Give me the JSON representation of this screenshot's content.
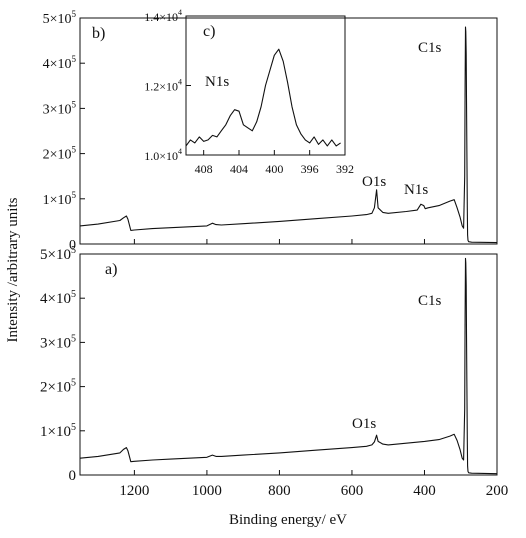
{
  "figure": {
    "ylabel": "Intensity /arbitrary units",
    "xlabel": "Binding energy/ eV"
  },
  "chart_data": [
    {
      "type": "line",
      "panel": "b)",
      "xlim": [
        1350,
        200
      ],
      "ylim": [
        0,
        500000
      ],
      "x_ticks": [
        "1200",
        "1000",
        "800",
        "600",
        "400",
        "200"
      ],
      "y_ticks": [
        {
          "mant": "0",
          "exp": ""
        },
        {
          "mant": "1×10",
          "exp": "5"
        },
        {
          "mant": "2×10",
          "exp": "5"
        },
        {
          "mant": "3×10",
          "exp": "5"
        },
        {
          "mant": "4×10",
          "exp": "5"
        },
        {
          "mant": "5×10",
          "exp": "5"
        }
      ],
      "annotations": [
        "C1s",
        "O1s",
        "N1s"
      ],
      "series": [
        {
          "x": [
            1350,
            1300,
            1240,
            1230,
            1222,
            1218,
            1210,
            1200,
            1150,
            1100,
            1000,
            985,
            975,
            960,
            900,
            800,
            700,
            600,
            560,
            545,
            538,
            532,
            528,
            515,
            500,
            450,
            420,
            410,
            402,
            398,
            390,
            360,
            330,
            318,
            310,
            302,
            296,
            292,
            289,
            288,
            287,
            286,
            285,
            284,
            283,
            282,
            281,
            280,
            278,
            270,
            200
          ],
          "y": [
            40000,
            44000,
            52000,
            58000,
            62000,
            55000,
            30000,
            31000,
            34000,
            36000,
            40000,
            46000,
            43000,
            42000,
            45000,
            50000,
            56000,
            62000,
            65000,
            68000,
            80000,
            120000,
            80000,
            70000,
            68000,
            72000,
            75000,
            88000,
            85000,
            78000,
            80000,
            85000,
            95000,
            98000,
            80000,
            60000,
            40000,
            35000,
            150000,
            350000,
            480000,
            470000,
            420000,
            320000,
            200000,
            80000,
            20000,
            8000,
            5000,
            4000,
            3000
          ]
        }
      ]
    },
    {
      "type": "line",
      "panel": "c)",
      "xlim": [
        410,
        392
      ],
      "ylim": [
        9400,
        14000
      ],
      "x_ticks": [
        "408",
        "404",
        "400",
        "396",
        "392"
      ],
      "y_ticks": [
        {
          "mant": "1.0×10",
          "exp": "4"
        },
        {
          "mant": "1.2×10",
          "exp": "4"
        },
        {
          "mant": "1.4×10",
          "exp": "4"
        }
      ],
      "annotations": [
        "N1s"
      ],
      "series": [
        {
          "x": [
            410,
            409.5,
            409,
            408.5,
            408,
            407.5,
            407,
            406.5,
            406,
            405.5,
            405,
            404.5,
            404,
            403.5,
            403,
            402.5,
            402,
            401.5,
            401,
            400.5,
            400,
            399.5,
            399,
            398.5,
            398,
            397.5,
            397,
            396.5,
            396,
            395.5,
            395,
            394.5,
            394,
            393.5,
            393,
            392.5
          ],
          "y": [
            9700,
            9900,
            9800,
            10000,
            9850,
            9900,
            10050,
            10000,
            10200,
            10400,
            10700,
            10900,
            10850,
            10400,
            10300,
            10200,
            10500,
            11000,
            11700,
            12200,
            12700,
            12900,
            12500,
            11800,
            11000,
            10400,
            10100,
            9900,
            9800,
            10000,
            9750,
            9900,
            9700,
            9900,
            9700,
            9800
          ]
        }
      ]
    },
    {
      "type": "line",
      "panel": "a)",
      "xlim": [
        1350,
        200
      ],
      "ylim": [
        0,
        500000
      ],
      "x_ticks": [
        "1200",
        "1000",
        "800",
        "600",
        "400",
        "200"
      ],
      "y_ticks": [
        {
          "mant": "0",
          "exp": ""
        },
        {
          "mant": "1×10",
          "exp": "5"
        },
        {
          "mant": "2×10",
          "exp": "5"
        },
        {
          "mant": "3×10",
          "exp": "5"
        },
        {
          "mant": "4×10",
          "exp": "5"
        },
        {
          "mant": "5×10",
          "exp": "5"
        }
      ],
      "annotations": [
        "C1s",
        "O1s"
      ],
      "series": [
        {
          "x": [
            1350,
            1300,
            1240,
            1230,
            1222,
            1218,
            1210,
            1200,
            1150,
            1100,
            1000,
            985,
            975,
            960,
            900,
            800,
            700,
            600,
            560,
            545,
            538,
            532,
            528,
            515,
            500,
            450,
            400,
            360,
            330,
            318,
            310,
            302,
            296,
            292,
            289,
            288,
            287,
            286,
            285,
            284,
            283,
            282,
            281,
            280,
            278,
            270,
            200
          ],
          "y": [
            38000,
            42000,
            50000,
            58000,
            62000,
            55000,
            30000,
            31000,
            34000,
            36000,
            40000,
            45000,
            42000,
            42000,
            45000,
            50000,
            56000,
            62000,
            65000,
            68000,
            75000,
            90000,
            76000,
            70000,
            68000,
            72000,
            76000,
            80000,
            88000,
            92000,
            78000,
            58000,
            38000,
            34000,
            150000,
            360000,
            490000,
            480000,
            430000,
            320000,
            200000,
            80000,
            20000,
            8000,
            5000,
            4000,
            3000
          ]
        }
      ]
    }
  ]
}
